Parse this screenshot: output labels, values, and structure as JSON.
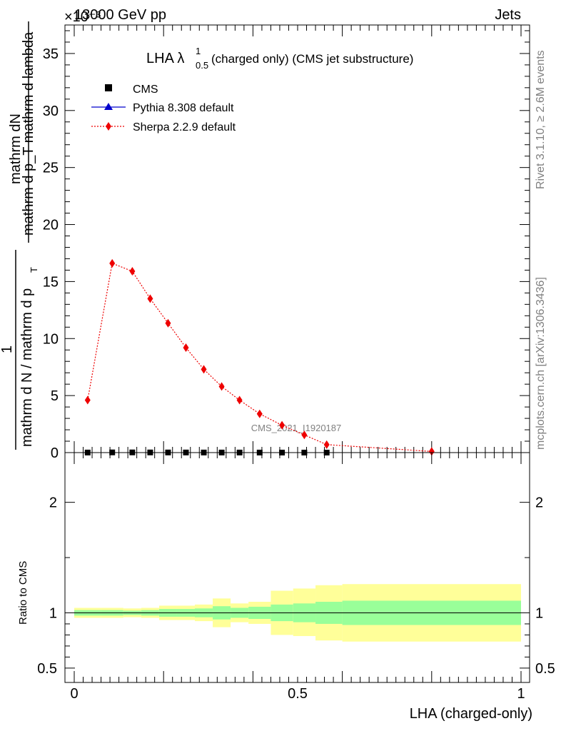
{
  "header": {
    "energy_label": "13000 GeV pp",
    "category_label": "Jets",
    "scale_exponent": "×10⁻³"
  },
  "side_labels": {
    "rivet": "Rivet 3.1.10, ≥ 2.6M events",
    "mcplots": "mcplots.cern.ch [arXiv:1306.3436]"
  },
  "watermark": "CMS_2021_I1920187",
  "chart_data": [
    {
      "type": "line",
      "title_main": "LHA λ",
      "title_sup": "1",
      "title_sub": "0.5",
      "title_rest": " (charged only) (CMS jet substructure)",
      "ylabel_top": "mathrm dN",
      "ylabel_bottom": "mathrm d p_T mathrm d lambda",
      "ylabel_one": "1",
      "ylabel_den_main": "mathrm d N / mathrm d p",
      "ylabel_den_sub": "T",
      "ylim": [
        0,
        37.5
      ],
      "yticks": [
        0,
        5,
        10,
        15,
        20,
        25,
        30,
        35
      ],
      "legend_position": "top-left",
      "series": [
        {
          "name": "CMS",
          "color": "#000000",
          "marker": "square",
          "x": [
            0.03,
            0.085,
            0.13,
            0.17,
            0.21,
            0.25,
            0.29,
            0.33,
            0.37,
            0.415,
            0.465,
            0.515,
            0.565
          ],
          "y": [
            0.005,
            0.017,
            0.016,
            0.013,
            0.011,
            0.009,
            0.007,
            0.006,
            0.005,
            0.003,
            0.002,
            0.0015,
            0.0007
          ]
        },
        {
          "name": "Pythia 8.308 default",
          "color": "#0000cc",
          "marker": "triangle",
          "x": [],
          "y": []
        },
        {
          "name": "Sherpa 2.2.9 default",
          "color": "#ee0000",
          "marker": "diamond",
          "x": [
            0.03,
            0.085,
            0.13,
            0.17,
            0.21,
            0.25,
            0.29,
            0.33,
            0.37,
            0.415,
            0.465,
            0.515,
            0.565,
            0.8
          ],
          "y": [
            4.6,
            16.6,
            15.9,
            13.5,
            11.35,
            9.2,
            7.3,
            5.8,
            4.6,
            3.4,
            2.4,
            1.55,
            0.7,
            0.1
          ]
        }
      ]
    },
    {
      "type": "area",
      "ylabel": "Ratio to CMS",
      "xlabel": "LHA (charged-only)",
      "xlim": [
        0,
        1
      ],
      "xticks": [
        0,
        0.5,
        1
      ],
      "xtick_labels": [
        "0",
        "0.5",
        "1"
      ],
      "ylim": [
        0.37,
        2.45
      ],
      "yticks": [
        0.5,
        1,
        2
      ],
      "ytick_labels": [
        "0.5",
        "1",
        "2"
      ],
      "reference_line": 1,
      "bins": [
        {
          "lo": 0.0,
          "hi": 0.06,
          "g": [
            0.975,
            1.025
          ],
          "y": [
            0.955,
            1.045
          ]
        },
        {
          "lo": 0.06,
          "hi": 0.11,
          "g": [
            0.975,
            1.025
          ],
          "y": [
            0.955,
            1.045
          ]
        },
        {
          "lo": 0.11,
          "hi": 0.15,
          "g": [
            0.98,
            1.02
          ],
          "y": [
            0.96,
            1.04
          ]
        },
        {
          "lo": 0.15,
          "hi": 0.19,
          "g": [
            0.975,
            1.025
          ],
          "y": [
            0.955,
            1.045
          ]
        },
        {
          "lo": 0.19,
          "hi": 0.23,
          "g": [
            0.965,
            1.035
          ],
          "y": [
            0.935,
            1.065
          ]
        },
        {
          "lo": 0.23,
          "hi": 0.27,
          "g": [
            0.965,
            1.035
          ],
          "y": [
            0.935,
            1.065
          ]
        },
        {
          "lo": 0.27,
          "hi": 0.31,
          "g": [
            0.96,
            1.04
          ],
          "y": [
            0.925,
            1.075
          ]
        },
        {
          "lo": 0.31,
          "hi": 0.35,
          "g": [
            0.94,
            1.06
          ],
          "y": [
            0.87,
            1.13
          ]
        },
        {
          "lo": 0.35,
          "hi": 0.39,
          "g": [
            0.955,
            1.045
          ],
          "y": [
            0.915,
            1.085
          ]
        },
        {
          "lo": 0.39,
          "hi": 0.44,
          "g": [
            0.945,
            1.055
          ],
          "y": [
            0.9,
            1.1
          ]
        },
        {
          "lo": 0.44,
          "hi": 0.49,
          "g": [
            0.925,
            1.075
          ],
          "y": [
            0.8,
            1.2
          ]
        },
        {
          "lo": 0.49,
          "hi": 0.54,
          "g": [
            0.915,
            1.085
          ],
          "y": [
            0.79,
            1.22
          ]
        },
        {
          "lo": 0.54,
          "hi": 0.6,
          "g": [
            0.9,
            1.1
          ],
          "y": [
            0.75,
            1.25
          ]
        },
        {
          "lo": 0.6,
          "hi": 1.0,
          "g": [
            0.89,
            1.11
          ],
          "y": [
            0.74,
            1.26
          ]
        }
      ]
    }
  ],
  "colors": {
    "band_inner": "#99ff99",
    "band_outer": "#ffff99"
  }
}
